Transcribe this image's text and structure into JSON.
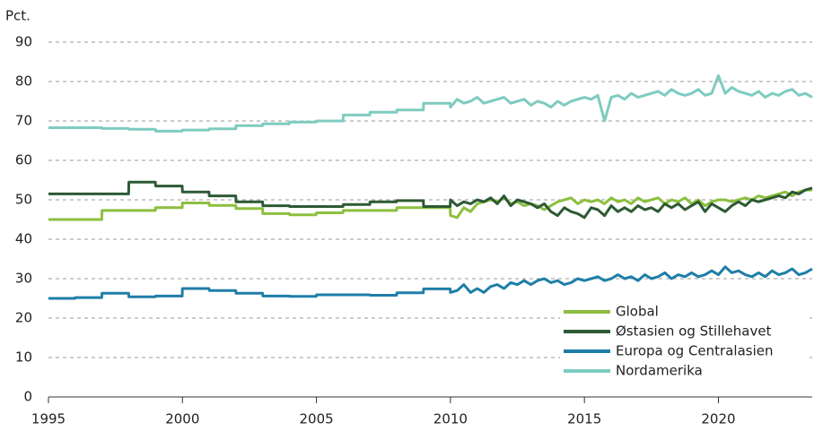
{
  "chart_data": {
    "type": "line",
    "y_label": "Pct.",
    "x": [
      1995,
      1995.99,
      1996,
      1996.99,
      1997,
      1997.99,
      1998,
      1998.99,
      1999,
      1999.99,
      2000,
      2000.99,
      2001,
      2001.99,
      2002,
      2002.99,
      2003,
      2003.99,
      2004,
      2004.99,
      2005,
      2005.99,
      2006,
      2006.99,
      2007,
      2007.99,
      2008,
      2008.99,
      2009,
      2009.99,
      2010,
      2010.25,
      2010.5,
      2010.75,
      2011,
      2011.25,
      2011.5,
      2011.75,
      2012,
      2012.25,
      2012.5,
      2012.75,
      2013,
      2013.25,
      2013.5,
      2013.75,
      2014,
      2014.25,
      2014.5,
      2014.75,
      2015,
      2015.25,
      2015.5,
      2015.75,
      2016,
      2016.25,
      2016.5,
      2016.75,
      2017,
      2017.25,
      2017.5,
      2017.75,
      2018,
      2018.25,
      2018.5,
      2018.75,
      2019,
      2019.25,
      2019.5,
      2019.75,
      2020,
      2020.25,
      2020.5,
      2020.75,
      2021,
      2021.25,
      2021.5,
      2021.75,
      2022,
      2022.25,
      2022.5,
      2022.75,
      2023,
      2023.25,
      2023.5
    ],
    "series": [
      {
        "name": "Global",
        "color": "#8cbf3f",
        "values": [
          45,
          45,
          45,
          45,
          47.3,
          47.3,
          47.3,
          47.3,
          48,
          48,
          49.2,
          49.2,
          48.6,
          48.6,
          47.8,
          47.8,
          46.5,
          46.5,
          46.2,
          46.2,
          46.7,
          46.7,
          47.3,
          47.3,
          47.3,
          47.3,
          48,
          48,
          48,
          48,
          46,
          45.5,
          48,
          47,
          49,
          49.5,
          50,
          49.5,
          50.5,
          49,
          49.5,
          48.5,
          49,
          48.5,
          47.5,
          48.5,
          49.5,
          50,
          50.5,
          49,
          50,
          49.5,
          50,
          49,
          50.5,
          49.5,
          50,
          49,
          50.5,
          49.5,
          50,
          50.5,
          49,
          50,
          49.5,
          50.5,
          49,
          50,
          48.5,
          49.5,
          50,
          50,
          49.5,
          50,
          50.5,
          50,
          51,
          50.5,
          51,
          51.5,
          52,
          51,
          52,
          52.5,
          52.5
        ]
      },
      {
        "name": "Østasien og Stillehavet",
        "color": "#2d5a34",
        "values": [
          51.5,
          51.5,
          51.5,
          51.5,
          51.5,
          51.5,
          54.5,
          54.5,
          53.5,
          53.5,
          52,
          52,
          51,
          51,
          49.5,
          49.5,
          48.5,
          48.5,
          48.3,
          48.3,
          48.3,
          48.3,
          48.8,
          48.8,
          49.5,
          49.5,
          49.8,
          49.8,
          48.3,
          48.3,
          50,
          48.5,
          49.5,
          49,
          50,
          49.5,
          50.5,
          49,
          51,
          48.5,
          50,
          49.5,
          49,
          48,
          49,
          47,
          46,
          48,
          47,
          46.5,
          45.5,
          48,
          47.5,
          46,
          48.5,
          47,
          48,
          47,
          48.5,
          47.5,
          48,
          47,
          49,
          48,
          49,
          47.5,
          48.5,
          49.5,
          47,
          49,
          48,
          47,
          48.5,
          49.5,
          48.5,
          50,
          49.5,
          50,
          50.5,
          51,
          50.5,
          52,
          51.5,
          52.5,
          53
        ]
      },
      {
        "name": "Europa og Centralasien",
        "color": "#1e7ea8",
        "values": [
          25,
          25,
          25.2,
          25.2,
          26.3,
          26.3,
          25.4,
          25.4,
          25.6,
          25.6,
          27.5,
          27.5,
          27,
          27,
          26.3,
          26.3,
          25.6,
          25.6,
          25.5,
          25.5,
          25.9,
          25.9,
          25.9,
          25.9,
          25.8,
          25.8,
          26.4,
          26.4,
          27.4,
          27.4,
          26.5,
          27,
          28.5,
          26.5,
          27.5,
          26.5,
          28,
          28.5,
          27.5,
          29,
          28.5,
          29.5,
          28.5,
          29.5,
          30,
          29,
          29.5,
          28.5,
          29,
          30,
          29.5,
          30,
          30.5,
          29.5,
          30,
          31,
          30,
          30.5,
          29.5,
          31,
          30,
          30.5,
          31.5,
          30,
          31,
          30.5,
          31.5,
          30.5,
          31,
          32,
          31,
          33,
          31.5,
          32,
          31,
          30.5,
          31.5,
          30.5,
          32,
          31,
          31.5,
          32.5,
          31,
          31.5,
          32.5
        ]
      },
      {
        "name": "Nordamerika",
        "color": "#7ecbc0",
        "values": [
          68.3,
          68.3,
          68.3,
          68.3,
          68.1,
          68.1,
          67.9,
          67.9,
          67.4,
          67.4,
          67.7,
          67.7,
          68,
          68,
          68.8,
          68.8,
          69.3,
          69.3,
          69.7,
          69.7,
          70,
          70,
          71.5,
          71.5,
          72.2,
          72.2,
          72.8,
          72.8,
          74.5,
          74.5,
          73.5,
          75.5,
          74.5,
          75,
          76,
          74.5,
          75,
          75.5,
          76,
          74.5,
          75,
          75.5,
          74,
          75,
          74.5,
          73.5,
          75,
          74,
          75,
          75.5,
          76,
          75.5,
          76.5,
          70,
          76,
          76.5,
          75.5,
          77,
          76,
          76.5,
          77,
          77.5,
          76.5,
          78,
          77,
          76.5,
          77,
          78,
          76.5,
          77,
          81.5,
          77,
          78.5,
          77.5,
          77,
          76.5,
          77.5,
          76,
          77,
          76.5,
          77.5,
          78,
          76.5,
          77,
          76
        ]
      }
    ],
    "xlim": [
      1995,
      2023.5
    ],
    "xticks": [
      1995,
      2000,
      2005,
      2010,
      2015,
      2020
    ],
    "ylim": [
      0,
      90
    ],
    "yticks": [
      0,
      10,
      20,
      30,
      40,
      50,
      60,
      70,
      80,
      90
    ],
    "grid": true,
    "legend": "lower right"
  }
}
